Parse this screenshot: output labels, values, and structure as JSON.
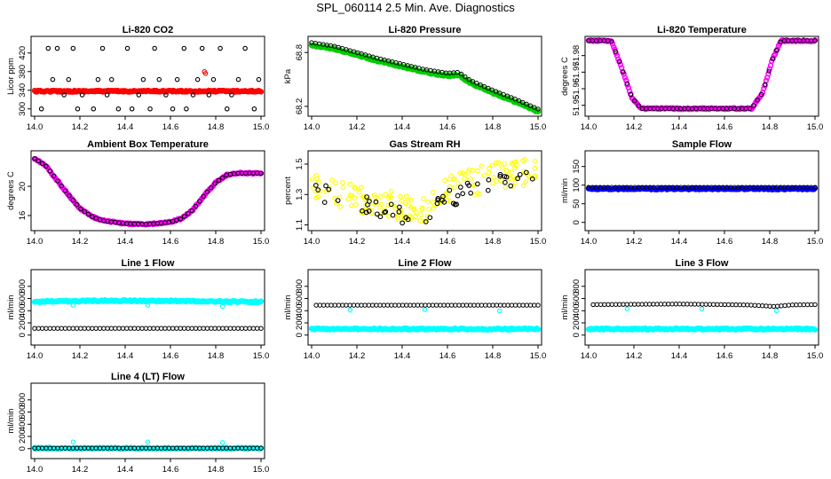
{
  "figure": {
    "title": "SPL_060114  2.5 Min. Ave. Diagnostics"
  },
  "colors": {
    "black": "#000000",
    "red": "#ff0000",
    "green": "#00cc00",
    "magenta": "#ff00ff",
    "yellow": "#ffff00",
    "blue": "#0000ff",
    "cyan": "#00ffff"
  },
  "chart_data": [
    {
      "type": "scatter",
      "title": "Li-820 CO2",
      "xlabel": "",
      "ylabel": "Licor ppm",
      "xlim": [
        14.0,
        15.0
      ],
      "ylim": [
        290,
        450
      ],
      "xticks": [
        "14.0",
        "14.2",
        "14.4",
        "14.6",
        "14.8",
        "15.0"
      ],
      "yticks": [
        "300",
        "340",
        "380",
        "420"
      ],
      "series": [
        {
          "color": "#ff0000",
          "style": "dense",
          "points": [
            [
              14.0,
              338
            ],
            [
              15.0,
              338
            ]
          ]
        },
        {
          "color": "#000000",
          "style": "scatter",
          "points": [
            [
              14.03,
              300
            ],
            [
              14.06,
              430
            ],
            [
              14.08,
              363
            ],
            [
              14.1,
              430
            ],
            [
              14.13,
              330
            ],
            [
              14.15,
              363
            ],
            [
              14.17,
              430
            ],
            [
              14.19,
              300
            ],
            [
              14.21,
              330
            ],
            [
              14.26,
              300
            ],
            [
              14.28,
              363
            ],
            [
              14.3,
              430
            ],
            [
              14.32,
              330
            ],
            [
              14.34,
              363
            ],
            [
              14.37,
              300
            ],
            [
              14.41,
              430
            ],
            [
              14.43,
              300
            ],
            [
              14.46,
              330
            ],
            [
              14.48,
              363
            ],
            [
              14.51,
              300
            ],
            [
              14.53,
              430
            ],
            [
              14.55,
              363
            ],
            [
              14.58,
              330
            ],
            [
              14.61,
              300
            ],
            [
              14.63,
              363
            ],
            [
              14.66,
              430
            ],
            [
              14.67,
              300
            ],
            [
              14.7,
              330
            ],
            [
              14.72,
              363
            ],
            [
              14.74,
              430
            ],
            [
              14.77,
              330
            ],
            [
              14.79,
              363
            ],
            [
              14.82,
              430
            ],
            [
              14.85,
              300
            ],
            [
              14.87,
              330
            ],
            [
              14.9,
              363
            ],
            [
              14.93,
              430
            ],
            [
              14.97,
              300
            ],
            [
              14.99,
              363
            ]
          ]
        },
        {
          "color": "#ff0000",
          "style": "scatter",
          "points": [
            [
              14.75,
              380
            ],
            [
              14.755,
              376
            ]
          ]
        }
      ]
    },
    {
      "type": "line",
      "title": "Li-820 Pressure",
      "xlabel": "",
      "ylabel": "kPa",
      "xlim": [
        14.0,
        15.0
      ],
      "ylim": [
        68.12,
        68.95
      ],
      "xticks": [
        "14.0",
        "14.2",
        "14.4",
        "14.6",
        "14.8",
        "15.0"
      ],
      "yticks": [
        "68.2",
        "68.8"
      ],
      "series": [
        {
          "color": "#00cc00",
          "style": "dense",
          "points": [
            [
              14.0,
              68.88
            ],
            [
              14.1,
              68.84
            ],
            [
              14.2,
              68.77
            ],
            [
              14.3,
              68.7
            ],
            [
              14.4,
              68.64
            ],
            [
              14.5,
              68.58
            ],
            [
              14.6,
              68.54
            ],
            [
              14.65,
              68.55
            ],
            [
              14.7,
              68.46
            ],
            [
              14.8,
              68.35
            ],
            [
              14.9,
              68.25
            ],
            [
              15.0,
              68.14
            ]
          ]
        },
        {
          "color": "#000000",
          "style": "sparse",
          "points": [
            [
              14.0,
              68.91
            ],
            [
              14.1,
              68.87
            ],
            [
              14.2,
              68.8
            ],
            [
              14.3,
              68.73
            ],
            [
              14.4,
              68.67
            ],
            [
              14.5,
              68.61
            ],
            [
              14.6,
              68.57
            ],
            [
              14.65,
              68.58
            ],
            [
              14.7,
              68.49
            ],
            [
              14.8,
              68.38
            ],
            [
              14.9,
              68.28
            ],
            [
              15.0,
              68.17
            ]
          ]
        }
      ]
    },
    {
      "type": "line",
      "title": "Li-820 Temperature",
      "xlabel": "",
      "ylabel": "degrees C",
      "xlim": [
        14.0,
        15.0
      ],
      "ylim": [
        51.945,
        51.99
      ],
      "xticks": [
        "14.0",
        "14.2",
        "14.4",
        "14.6",
        "14.8",
        "15.0"
      ],
      "yticks": [
        "51.95",
        "51.96",
        "51.97",
        "51.98"
      ],
      "series": [
        {
          "color": "#ff00ff",
          "style": "dense",
          "points": [
            [
              14.0,
              51.989
            ],
            [
              14.1,
              51.989
            ],
            [
              14.14,
              51.975
            ],
            [
              14.19,
              51.955
            ],
            [
              14.23,
              51.948
            ],
            [
              14.5,
              51.948
            ],
            [
              14.72,
              51.948
            ],
            [
              14.77,
              51.958
            ],
            [
              14.81,
              51.977
            ],
            [
              14.85,
              51.989
            ],
            [
              15.0,
              51.989
            ]
          ]
        },
        {
          "color": "#000000",
          "style": "sparse",
          "points": [
            [
              14.0,
              51.989
            ],
            [
              14.1,
              51.989
            ],
            [
              14.14,
              51.975
            ],
            [
              14.19,
              51.955
            ],
            [
              14.23,
              51.948
            ],
            [
              14.5,
              51.948
            ],
            [
              14.72,
              51.948
            ],
            [
              14.77,
              51.958
            ],
            [
              14.81,
              51.977
            ],
            [
              14.85,
              51.989
            ],
            [
              15.0,
              51.989
            ]
          ]
        }
      ]
    },
    {
      "type": "line",
      "title": "Ambient Box Temperature",
      "xlabel": "",
      "ylabel": "degrees C",
      "xlim": [
        14.0,
        15.0
      ],
      "ylim": [
        14.3,
        24.5
      ],
      "xticks": [
        "14.0",
        "14.2",
        "14.4",
        "14.6",
        "14.8",
        "15.0"
      ],
      "yticks": [
        "16",
        "20"
      ],
      "series": [
        {
          "color": "#ff00ff",
          "style": "dense",
          "points": [
            [
              14.0,
              23.8
            ],
            [
              14.05,
              22.8
            ],
            [
              14.1,
              20.8
            ],
            [
              14.15,
              18.8
            ],
            [
              14.2,
              17.0
            ],
            [
              14.25,
              15.9
            ],
            [
              14.3,
              15.3
            ],
            [
              14.4,
              14.9
            ],
            [
              14.5,
              14.8
            ],
            [
              14.6,
              15.1
            ],
            [
              14.65,
              15.6
            ],
            [
              14.7,
              16.8
            ],
            [
              14.75,
              18.8
            ],
            [
              14.8,
              20.5
            ],
            [
              14.85,
              21.6
            ],
            [
              14.9,
              21.8
            ],
            [
              15.0,
              21.8
            ]
          ]
        },
        {
          "color": "#000000",
          "style": "sparse",
          "points": [
            [
              14.0,
              23.8
            ],
            [
              14.05,
              22.8
            ],
            [
              14.1,
              20.8
            ],
            [
              14.15,
              18.8
            ],
            [
              14.2,
              17.0
            ],
            [
              14.25,
              15.9
            ],
            [
              14.3,
              15.3
            ],
            [
              14.4,
              14.9
            ],
            [
              14.5,
              14.8
            ],
            [
              14.6,
              15.1
            ],
            [
              14.65,
              15.6
            ],
            [
              14.7,
              16.8
            ],
            [
              14.75,
              18.8
            ],
            [
              14.8,
              20.5
            ],
            [
              14.85,
              21.6
            ],
            [
              14.9,
              21.8
            ],
            [
              15.0,
              21.8
            ]
          ]
        }
      ]
    },
    {
      "type": "scatter",
      "title": "Gas Stream RH",
      "xlabel": "",
      "ylabel": "percent",
      "xlim": [
        14.0,
        15.0
      ],
      "ylim": [
        1.08,
        1.57
      ],
      "xticks": [
        "14.0",
        "14.2",
        "14.4",
        "14.6",
        "14.8",
        "15.0"
      ],
      "yticks": [
        "1.1",
        "1.3",
        "1.5"
      ],
      "series": [
        {
          "color": "#ffff00",
          "style": "noisy",
          "noise": 0.09,
          "points": [
            [
              14.0,
              1.35
            ],
            [
              14.2,
              1.27
            ],
            [
              14.4,
              1.22
            ],
            [
              14.5,
              1.21
            ],
            [
              14.6,
              1.33
            ],
            [
              14.8,
              1.42
            ],
            [
              15.0,
              1.45
            ]
          ]
        },
        {
          "color": "#000000",
          "style": "noisy",
          "noise": 0.06,
          "points": [
            [
              14.0,
              1.32
            ],
            [
              14.2,
              1.25
            ],
            [
              14.4,
              1.17
            ],
            [
              14.5,
              1.15
            ],
            [
              14.6,
              1.27
            ],
            [
              14.8,
              1.37
            ],
            [
              15.0,
              1.4
            ]
          ]
        }
      ]
    },
    {
      "type": "scatter",
      "title": "Sample Flow",
      "xlabel": "",
      "ylabel": "ml/min",
      "xlim": [
        14.0,
        15.0
      ],
      "ylim": [
        -15,
        185
      ],
      "xticks": [
        "14.0",
        "14.2",
        "14.4",
        "14.6",
        "14.8",
        "15.0"
      ],
      "yticks": [
        "0",
        "50",
        "100",
        "150"
      ],
      "series": [
        {
          "color": "#0000ff",
          "style": "dense",
          "points": [
            [
              14.0,
              90
            ],
            [
              15.0,
              90
            ]
          ]
        },
        {
          "color": "#000000",
          "style": "sparse",
          "points": [
            [
              14.0,
              94
            ],
            [
              15.0,
              94
            ]
          ]
        }
      ]
    },
    {
      "type": "scatter",
      "title": "Line 1 Flow",
      "xlabel": "",
      "ylabel": "ml/min",
      "xlim": [
        14.0,
        15.0
      ],
      "ylim": [
        -120,
        1030
      ],
      "xticks": [
        "14.0",
        "14.2",
        "14.4",
        "14.6",
        "14.8",
        "15.0"
      ],
      "yticks": [
        "0",
        "200",
        "400",
        "600",
        "800"
      ],
      "series": [
        {
          "color": "#00ffff",
          "style": "dense",
          "points": [
            [
              14.0,
              550
            ],
            [
              14.3,
              565
            ],
            [
              14.6,
              560
            ],
            [
              15.0,
              545
            ]
          ]
        },
        {
          "color": "#00ffff",
          "style": "scatter",
          "points": [
            [
              14.17,
              490
            ],
            [
              14.5,
              490
            ],
            [
              14.83,
              470
            ]
          ]
        },
        {
          "color": "#000000",
          "style": "sparse",
          "points": [
            [
              14.0,
              110
            ],
            [
              15.0,
              110
            ]
          ]
        }
      ]
    },
    {
      "type": "scatter",
      "title": "Line 2 Flow",
      "xlabel": "",
      "ylabel": "ml/min",
      "xlim": [
        14.0,
        15.0
      ],
      "ylim": [
        -120,
        1030
      ],
      "xticks": [
        "14.0",
        "14.2",
        "14.4",
        "14.6",
        "14.8",
        "15.0"
      ],
      "yticks": [
        "0",
        "200",
        "400",
        "600",
        "800"
      ],
      "series": [
        {
          "color": "#00ffff",
          "style": "dense",
          "points": [
            [
              14.0,
              100
            ],
            [
              15.0,
              100
            ]
          ]
        },
        {
          "color": "#00ffff",
          "style": "scatter",
          "points": [
            [
              14.17,
              410
            ],
            [
              14.5,
              420
            ],
            [
              14.83,
              395
            ]
          ]
        },
        {
          "color": "#000000",
          "style": "sparse",
          "points": [
            [
              14.02,
              490
            ],
            [
              15.0,
              490
            ]
          ]
        }
      ]
    },
    {
      "type": "scatter",
      "title": "Line 3 Flow",
      "xlabel": "",
      "ylabel": "ml/min",
      "xlim": [
        14.0,
        15.0
      ],
      "ylim": [
        -120,
        1030
      ],
      "xticks": [
        "14.0",
        "14.2",
        "14.4",
        "14.6",
        "14.8",
        "15.0"
      ],
      "yticks": [
        "0",
        "200",
        "400",
        "600",
        "800"
      ],
      "series": [
        {
          "color": "#00ffff",
          "style": "dense",
          "points": [
            [
              14.0,
              100
            ],
            [
              15.0,
              100
            ]
          ]
        },
        {
          "color": "#00ffff",
          "style": "scatter",
          "points": [
            [
              14.17,
              430
            ],
            [
              14.5,
              430
            ],
            [
              14.83,
              400
            ]
          ]
        },
        {
          "color": "#000000",
          "style": "sparse",
          "points": [
            [
              14.02,
              500
            ],
            [
              14.4,
              510
            ],
            [
              14.7,
              495
            ],
            [
              14.82,
              470
            ],
            [
              14.9,
              495
            ],
            [
              15.0,
              500
            ]
          ]
        }
      ]
    },
    {
      "type": "scatter",
      "title": "Line 4 (LT) Flow",
      "xlabel": "",
      "ylabel": "ml/min",
      "xlim": [
        14.0,
        15.0
      ],
      "ylim": [
        -120,
        1030
      ],
      "xticks": [
        "14.0",
        "14.2",
        "14.4",
        "14.6",
        "14.8",
        "15.0"
      ],
      "yticks": [
        "0",
        "200",
        "400",
        "600",
        "800"
      ],
      "series": [
        {
          "color": "#00ffff",
          "style": "dense",
          "points": [
            [
              14.0,
              5
            ],
            [
              15.0,
              5
            ]
          ]
        },
        {
          "color": "#00ffff",
          "style": "scatter",
          "points": [
            [
              14.17,
              110
            ],
            [
              14.5,
              110
            ],
            [
              14.83,
              100
            ]
          ]
        },
        {
          "color": "#000000",
          "style": "sparse",
          "points": [
            [
              14.0,
              8
            ],
            [
              15.0,
              8
            ]
          ]
        }
      ]
    }
  ]
}
